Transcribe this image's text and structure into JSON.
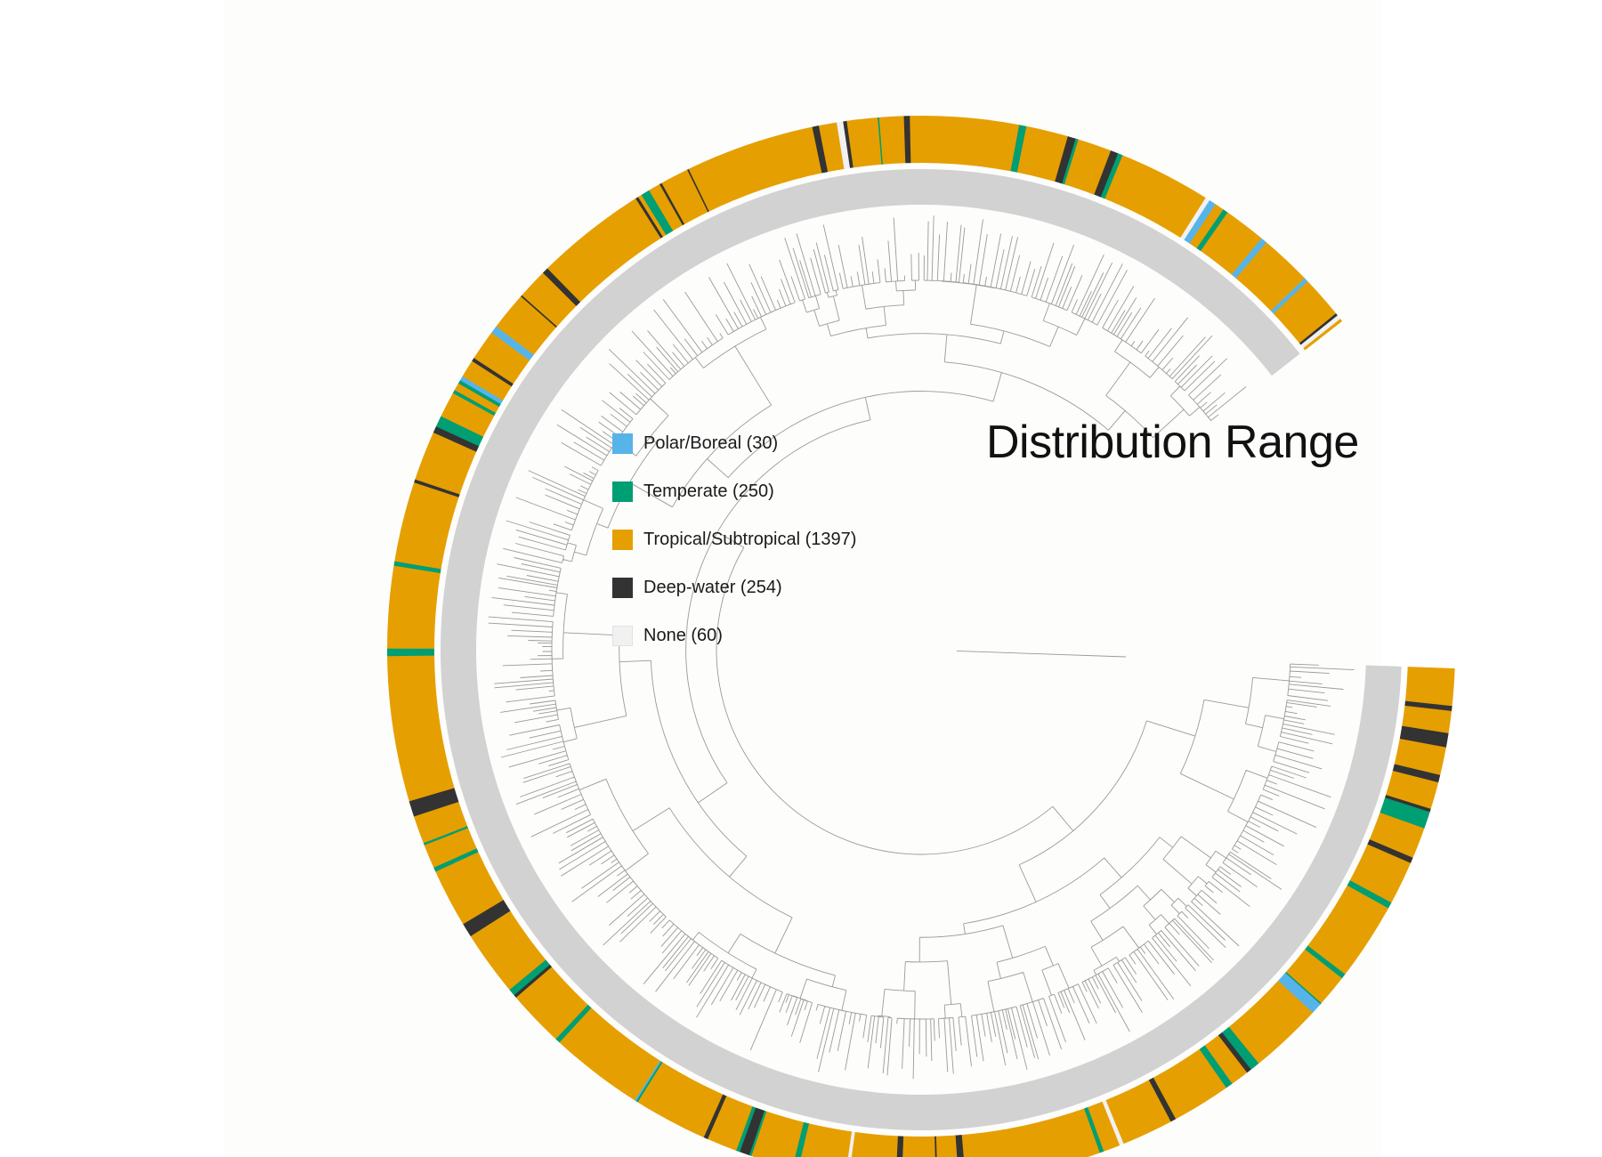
{
  "title": "Distribution Range",
  "legend": [
    {
      "label": "Polar/Boreal (30)",
      "color": "#56B4E9"
    },
    {
      "label": "Temperate (250)",
      "color": "#009E73"
    },
    {
      "label": "Tropical/Subtropical (1397)",
      "color": "#E69F00"
    },
    {
      "label": "Deep-water (254)",
      "color": "#333333"
    },
    {
      "label": "None (60)",
      "color": "#f1f1f1"
    }
  ],
  "colors": {
    "polar": "#56B4E9",
    "temperate": "#009E73",
    "tropical": "#E69F00",
    "deep": "#333333",
    "none": "#f1f1f1",
    "branch": "#9a9a9a",
    "tip_ring": "#d2d2d2"
  }
}
